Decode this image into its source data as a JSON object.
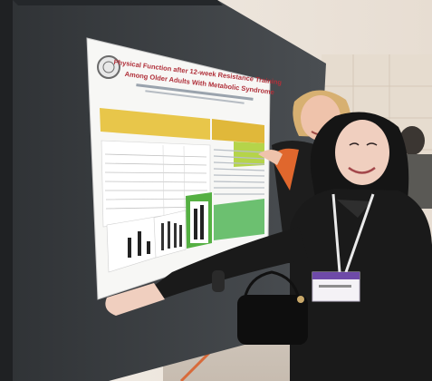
{
  "photo": {
    "poster": {
      "title_line_1": "Physical Function after 12-week Resistance Training",
      "title_line_2": "Among Older Adults With Metabolic Syndrome"
    }
  }
}
